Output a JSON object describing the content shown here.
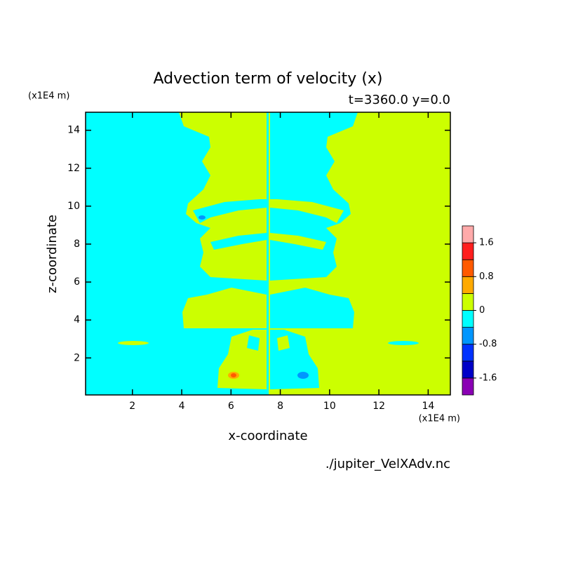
{
  "chart_data": {
    "type": "contour",
    "title": "Advection term of velocity (x)",
    "subtitle": "t=3360.0 y=0.0",
    "x_label": "x-coordinate",
    "y_label": "z-coordinate",
    "x_unit": "(x1E4 m)",
    "y_unit": "(x1E4 m)",
    "source": "./jupiter_VelXAdv.nc",
    "xlim": [
      0.1,
      14.9
    ],
    "ylim": [
      0.05,
      14.95
    ],
    "xticks": [
      2,
      4,
      6,
      8,
      10,
      12,
      14
    ],
    "yticks": [
      2,
      4,
      6,
      8,
      10,
      12,
      14
    ],
    "colorbar": {
      "levels": [
        -2,
        -1.6,
        -1.2,
        -0.8,
        -0.4,
        0,
        0.4,
        0.8,
        1.2,
        1.6,
        2
      ],
      "colors": [
        "#8a00b4",
        "#0000c8",
        "#0032ff",
        "#0096ff",
        "#00ffff",
        "#ccff00",
        "#ffaa00",
        "#ff5a00",
        "#ff1e1e",
        "#ffaaaa"
      ],
      "ticks": [
        -1.6,
        -0.8,
        0,
        0.8,
        1.6
      ]
    }
  }
}
